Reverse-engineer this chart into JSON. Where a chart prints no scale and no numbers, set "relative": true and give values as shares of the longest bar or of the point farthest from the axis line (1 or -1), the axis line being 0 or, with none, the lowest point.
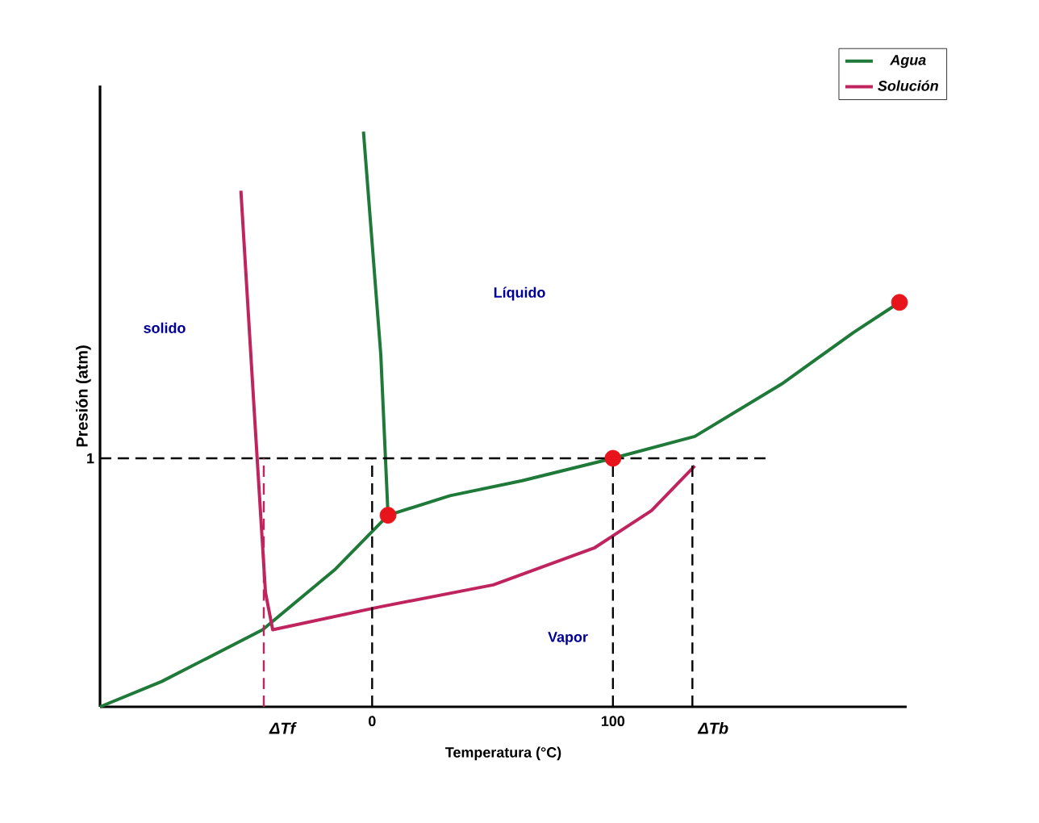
{
  "chart_data": {
    "type": "line",
    "relative": true,
    "xlabel": "Temperatura  (°C)",
    "ylabel": "Presión (atm)",
    "xlim": [
      -113,
      222
    ],
    "xticks": [
      0,
      100
    ],
    "legend": "top right",
    "series": [
      {
        "name": "Agua",
        "color": "#1f7a3a",
        "marker": "none",
        "x": [
          -113,
          -87.4,
          -45.5,
          -15.6,
          6.6,
          32.3,
          62.3,
          100,
          134,
          170,
          200,
          219
        ],
        "values": [
          0,
          0.044,
          0.134,
          0.238,
          0.333,
          0.367,
          0.393,
          0.432,
          0.47,
          0.561,
          0.651,
          0.703
        ]
      },
      {
        "type": "line",
        "color": "#1f7a3a",
        "marker": "none",
        "x": [
          6.6,
          3.6,
          -3.6
        ],
        "values": [
          0.333,
          0.612,
          1.0
        ]
      },
      {
        "name": "Solución",
        "color": "#c0245e",
        "marker": "none",
        "x": [
          -54.5,
          -48.5,
          -44.3,
          -41.3,
          2.4,
          50.3,
          92.2,
          116,
          134
        ],
        "values": [
          0.897,
          0.483,
          0.199,
          0.134,
          0.173,
          0.212,
          0.276,
          0.341,
          0.419
        ]
      },
      {
        "type": "scatter",
        "color": "#e8141b",
        "marker": "circle",
        "x": [
          6.6,
          100,
          219
        ],
        "values": [
          0.333,
          0.432,
          0.703
        ]
      }
    ],
    "ref_lines": [
      {
        "axis": "y",
        "value": 0.432,
        "color": "#000000",
        "line_style": "dashed"
      },
      {
        "axis": "x",
        "value": -45,
        "label": "ΔTf",
        "color": "#c0245e",
        "line_style": "dashed"
      },
      {
        "axis": "x",
        "value": 0,
        "color": "#000000",
        "line_style": "dashed"
      },
      {
        "axis": "x",
        "value": 100,
        "color": "#000000",
        "line_style": "dashed"
      },
      {
        "axis": "x",
        "value": 133,
        "label": "ΔTb",
        "color": "#000000",
        "line_style": "dashed"
      }
    ],
    "annotations": [
      "1",
      "solido",
      "Líquido",
      "Vapor"
    ]
  }
}
